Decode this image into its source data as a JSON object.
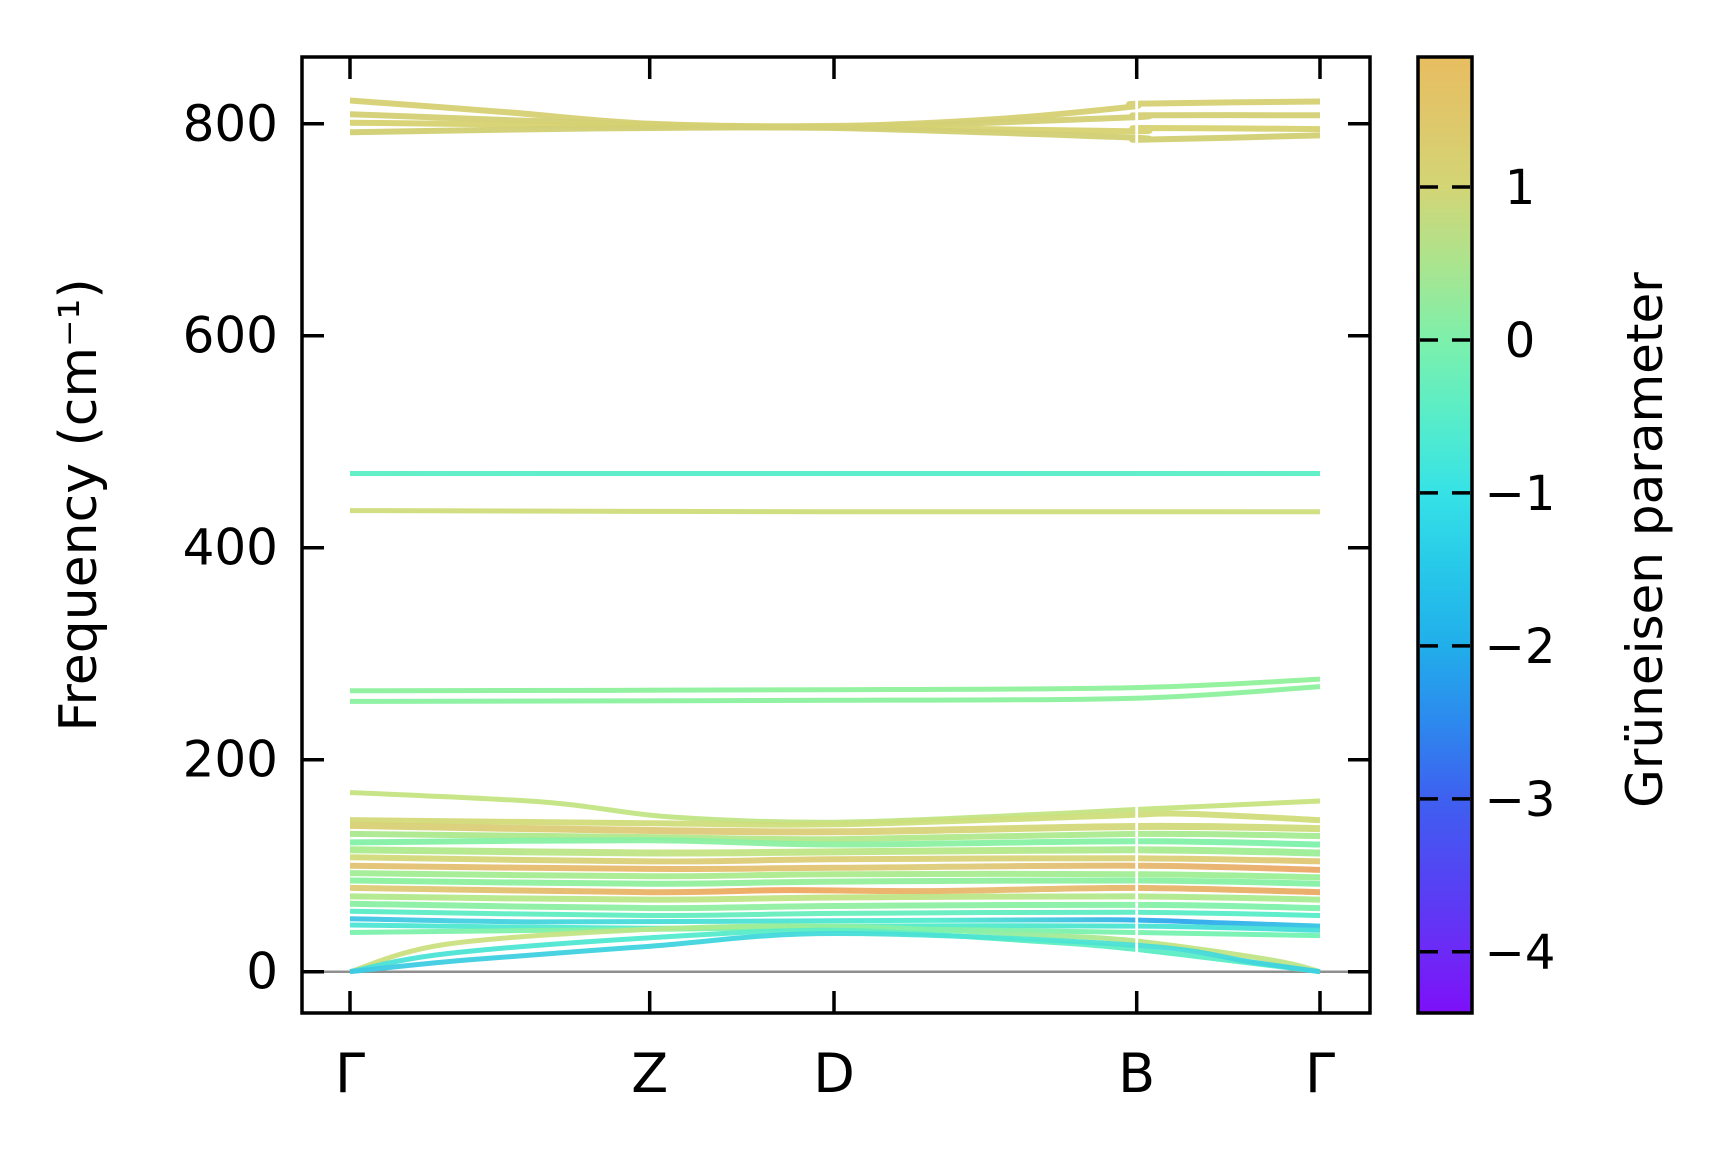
{
  "figure": {
    "background": "#ffffff",
    "frame_color": "#000000"
  },
  "chart_data": {
    "type": "line",
    "subtype": "phonon-band-structure-with-gruneisen-colormap",
    "title": "",
    "ylabel": "Frequency (cm⁻¹)",
    "ylim": [
      -39,
      863
    ],
    "y_ticks": [
      0,
      200,
      400,
      600,
      800
    ],
    "k_path_labels": [
      "Γ",
      "Z",
      "D",
      "B",
      "Γ"
    ],
    "k_path_fractions": [
      0,
      0.309,
      0.499,
      0.811,
      1.0
    ],
    "zero_line": {
      "value": 0,
      "color": "#8f8f8f"
    },
    "discontinuity_at": 0.811,
    "colorbar": {
      "label": "Grüneisen parameter",
      "vmax": 1.85,
      "vmin": -4.4,
      "ticks": [
        1,
        0,
        -1,
        -2,
        -3,
        -4
      ],
      "gradient": [
        {
          "v": 1.85,
          "c": "#e8bd61"
        },
        {
          "v": 1.4,
          "c": "#ddc96c"
        },
        {
          "v": 1.0,
          "c": "#d3d576"
        },
        {
          "v": 0.5,
          "c": "#abe48e"
        },
        {
          "v": 0.0,
          "c": "#7df0ab"
        },
        {
          "v": -0.5,
          "c": "#58edc9"
        },
        {
          "v": -1.0,
          "c": "#36e2e6"
        },
        {
          "v": -1.5,
          "c": "#27c8e9"
        },
        {
          "v": -2.0,
          "c": "#21aeea"
        },
        {
          "v": -2.5,
          "c": "#2d89ee"
        },
        {
          "v": -3.0,
          "c": "#3e60f0"
        },
        {
          "v": -3.5,
          "c": "#5345f3"
        },
        {
          "v": -4.0,
          "c": "#6c2af6"
        },
        {
          "v": -4.4,
          "c": "#7d10f8"
        }
      ]
    },
    "bands": [
      {
        "w": 6,
        "points": [
          [
            0,
            822
          ],
          [
            0.16,
            811
          ],
          [
            0.31,
            800
          ],
          [
            0.5,
            798
          ],
          [
            0.66,
            804
          ],
          [
            0.805,
            816
          ],
          [
            0.815,
            819
          ],
          [
            1,
            821
          ]
        ],
        "colors": [
          [
            0,
            "#d6d073"
          ]
        ]
      },
      {
        "w": 6,
        "points": [
          [
            0,
            809
          ],
          [
            0.31,
            799
          ],
          [
            0.5,
            797
          ],
          [
            0.805,
            806
          ],
          [
            0.815,
            808
          ],
          [
            1,
            808
          ]
        ],
        "colors": [
          [
            0,
            "#d4d075"
          ]
        ]
      },
      {
        "w": 6,
        "points": [
          [
            0,
            801
          ],
          [
            0.31,
            798
          ],
          [
            0.5,
            797
          ],
          [
            0.805,
            793
          ],
          [
            0.815,
            796
          ],
          [
            1,
            795
          ]
        ],
        "colors": [
          [
            0,
            "#d7d271"
          ]
        ]
      },
      {
        "w": 6,
        "points": [
          [
            0,
            792
          ],
          [
            0.2,
            795
          ],
          [
            0.31,
            796
          ],
          [
            0.5,
            796
          ],
          [
            0.805,
            787
          ],
          [
            0.815,
            785
          ],
          [
            1,
            789
          ]
        ],
        "colors": [
          [
            0,
            "#d2cf74"
          ]
        ]
      },
      {
        "w": 5,
        "points": [
          [
            0,
            470
          ],
          [
            0.5,
            470
          ],
          [
            1,
            470
          ]
        ],
        "colors": [
          [
            0,
            "#5beec5"
          ],
          [
            0.5,
            "#54edca"
          ],
          [
            1,
            "#5beec5"
          ]
        ]
      },
      {
        "w": 5,
        "points": [
          [
            0,
            435
          ],
          [
            0.5,
            434
          ],
          [
            1,
            434
          ]
        ],
        "colors": [
          [
            0,
            "#cfdc7b"
          ],
          [
            1,
            "#cdde7c"
          ]
        ]
      },
      {
        "w": 5,
        "points": [
          [
            0,
            265
          ],
          [
            0.5,
            266
          ],
          [
            0.81,
            268
          ],
          [
            1,
            276
          ]
        ],
        "colors": [
          [
            0,
            "#8cf19d"
          ],
          [
            1,
            "#90f19a"
          ]
        ]
      },
      {
        "w": 5,
        "points": [
          [
            0,
            255
          ],
          [
            0.5,
            256
          ],
          [
            0.81,
            258
          ],
          [
            1,
            269
          ]
        ],
        "colors": [
          [
            0,
            "#8af1a0"
          ],
          [
            1,
            "#8df19d"
          ]
        ]
      },
      {
        "w": 5,
        "points": [
          [
            0,
            169
          ],
          [
            0.2,
            160
          ],
          [
            0.33,
            146
          ],
          [
            0.5,
            141
          ],
          [
            0.7,
            148
          ],
          [
            0.81,
            153
          ],
          [
            1,
            161
          ]
        ],
        "colors": [
          [
            0,
            "#c6e381"
          ],
          [
            0.5,
            "#bfe586"
          ],
          [
            1,
            "#c8e37f"
          ]
        ]
      },
      {
        "w": 6,
        "points": [
          [
            0,
            143
          ],
          [
            0.31,
            140
          ],
          [
            0.5,
            139
          ],
          [
            0.78,
            147
          ],
          [
            0.86,
            149
          ],
          [
            1,
            143
          ]
        ],
        "colors": [
          [
            0,
            "#d4d978"
          ],
          [
            0.6,
            "#cde07e"
          ],
          [
            1,
            "#d1dc7a"
          ]
        ]
      },
      {
        "w": 7,
        "points": [
          [
            0,
            138
          ],
          [
            0.25,
            134
          ],
          [
            0.5,
            132
          ],
          [
            0.81,
            137
          ],
          [
            1,
            135
          ]
        ],
        "colors": [
          [
            0,
            "#d8d175"
          ],
          [
            0.35,
            "#dfc97a"
          ],
          [
            0.7,
            "#d5d77a"
          ],
          [
            1,
            "#cfdd7d"
          ]
        ]
      },
      {
        "w": 6,
        "points": [
          [
            0,
            130
          ],
          [
            0.31,
            127
          ],
          [
            0.5,
            125
          ],
          [
            0.81,
            130
          ],
          [
            1,
            128
          ]
        ],
        "colors": [
          [
            0,
            "#aae98e"
          ],
          [
            0.5,
            "#b5e88b"
          ],
          [
            1,
            "#a4ec93"
          ]
        ]
      },
      {
        "w": 6,
        "points": [
          [
            0,
            122
          ],
          [
            0.31,
            124
          ],
          [
            0.5,
            120
          ],
          [
            0.81,
            123
          ],
          [
            1,
            120
          ]
        ],
        "colors": [
          [
            0,
            "#83f0a6"
          ],
          [
            0.5,
            "#8ef0a0"
          ],
          [
            1,
            "#7df2ab"
          ]
        ]
      },
      {
        "w": 7,
        "points": [
          [
            0,
            115
          ],
          [
            0.31,
            112
          ],
          [
            0.5,
            113
          ],
          [
            0.81,
            115
          ],
          [
            1,
            112
          ]
        ],
        "colors": [
          [
            0,
            "#a9eb8f"
          ],
          [
            0.35,
            "#c6e383"
          ],
          [
            0.65,
            "#b6e88a"
          ],
          [
            1,
            "#9cee97"
          ]
        ]
      },
      {
        "w": 6,
        "points": [
          [
            0,
            108
          ],
          [
            0.31,
            104
          ],
          [
            0.5,
            106
          ],
          [
            0.81,
            107
          ],
          [
            1,
            104
          ]
        ],
        "colors": [
          [
            0,
            "#d1db7b"
          ],
          [
            0.4,
            "#ddcc77"
          ],
          [
            0.75,
            "#d7d57a"
          ],
          [
            1,
            "#e1c675"
          ]
        ]
      },
      {
        "w": 6,
        "points": [
          [
            0,
            100
          ],
          [
            0.31,
            97
          ],
          [
            0.5,
            98
          ],
          [
            0.81,
            100
          ],
          [
            1,
            96
          ]
        ],
        "colors": [
          [
            0,
            "#e2c374"
          ],
          [
            0.3,
            "#e8b96c"
          ],
          [
            0.6,
            "#ddcd79"
          ],
          [
            1,
            "#eca767"
          ]
        ]
      },
      {
        "w": 6,
        "points": [
          [
            0,
            93
          ],
          [
            0.31,
            90
          ],
          [
            0.5,
            92
          ],
          [
            0.81,
            92
          ],
          [
            1,
            89
          ]
        ],
        "colors": [
          [
            0,
            "#a1ed94"
          ],
          [
            0.5,
            "#adeb8d"
          ],
          [
            1,
            "#9aef98"
          ]
        ]
      },
      {
        "w": 6,
        "points": [
          [
            0,
            86
          ],
          [
            0.31,
            83
          ],
          [
            0.5,
            85
          ],
          [
            0.81,
            86
          ],
          [
            1,
            83
          ]
        ],
        "colors": [
          [
            0,
            "#8bf1a0"
          ],
          [
            0.5,
            "#97ef9b"
          ],
          [
            1,
            "#85f1a6"
          ]
        ]
      },
      {
        "w": 6,
        "points": [
          [
            0,
            79
          ],
          [
            0.31,
            75
          ],
          [
            0.45,
            77
          ],
          [
            0.6,
            76
          ],
          [
            0.81,
            79
          ],
          [
            1,
            75
          ]
        ],
        "colors": [
          [
            0,
            "#dccd78"
          ],
          [
            0.45,
            "#efa75e"
          ],
          [
            0.7,
            "#e5bd70"
          ],
          [
            1,
            "#eaaa63"
          ]
        ]
      },
      {
        "w": 6,
        "points": [
          [
            0,
            71
          ],
          [
            0.31,
            68
          ],
          [
            0.5,
            70
          ],
          [
            0.81,
            71
          ],
          [
            1,
            68
          ]
        ],
        "colors": [
          [
            0,
            "#b0ea8c"
          ],
          [
            0.5,
            "#c2e484"
          ],
          [
            1,
            "#a7ec92"
          ]
        ]
      },
      {
        "w": 6,
        "points": [
          [
            0,
            64
          ],
          [
            0.31,
            60
          ],
          [
            0.5,
            62
          ],
          [
            0.81,
            63
          ],
          [
            1,
            60
          ]
        ],
        "colors": [
          [
            0,
            "#89f0a3"
          ],
          [
            0.5,
            "#92efa0"
          ],
          [
            1,
            "#7ef2ac"
          ]
        ]
      },
      {
        "w": 5,
        "points": [
          [
            0,
            57
          ],
          [
            0.31,
            53
          ],
          [
            0.5,
            55
          ],
          [
            0.81,
            56
          ],
          [
            1,
            53
          ]
        ],
        "colors": [
          [
            0,
            "#59ecc6"
          ],
          [
            0.5,
            "#69eebc"
          ],
          [
            1,
            "#55edca"
          ]
        ]
      },
      {
        "w": 5,
        "points": [
          [
            0,
            50
          ],
          [
            0.2,
            47
          ],
          [
            0.5,
            48
          ],
          [
            0.78,
            49
          ],
          [
            0.9,
            46
          ],
          [
            1,
            43
          ]
        ],
        "colors": [
          [
            0,
            "#3fc4e5"
          ],
          [
            0.25,
            "#46d9db"
          ],
          [
            0.6,
            "#52eccd"
          ],
          [
            0.85,
            "#2da5ef"
          ],
          [
            1,
            "#36c5e3"
          ]
        ]
      },
      {
        "w": 5,
        "points": [
          [
            0,
            44
          ],
          [
            0.31,
            41
          ],
          [
            0.5,
            43
          ],
          [
            0.81,
            43
          ],
          [
            1,
            39
          ]
        ],
        "colors": [
          [
            0,
            "#4ce5d4"
          ],
          [
            0.5,
            "#58eec5"
          ],
          [
            1,
            "#42ddda"
          ]
        ]
      },
      {
        "w": 5,
        "points": [
          [
            0,
            37
          ],
          [
            0.31,
            40
          ],
          [
            0.5,
            41
          ],
          [
            0.81,
            37
          ],
          [
            1,
            34
          ]
        ],
        "colors": [
          [
            0,
            "#7cf2ac"
          ],
          [
            0.5,
            "#87f0a5"
          ],
          [
            1,
            "#71f3b4"
          ]
        ]
      },
      {
        "w": 5,
        "points": [
          [
            0,
            0
          ],
          [
            0.1,
            26
          ],
          [
            0.31,
            40
          ],
          [
            0.5,
            43
          ],
          [
            0.7,
            35
          ],
          [
            0.81,
            29
          ],
          [
            0.95,
            11
          ],
          [
            1,
            0
          ]
        ],
        "colors": [
          [
            0,
            "#cede7e"
          ],
          [
            0.2,
            "#c9e282"
          ],
          [
            0.4,
            "#a6ec93"
          ],
          [
            0.6,
            "#7df2ae"
          ],
          [
            0.85,
            "#c4e382"
          ],
          [
            1,
            "#bde58a"
          ]
        ]
      },
      {
        "w": 5,
        "points": [
          [
            0,
            0
          ],
          [
            0.1,
            17
          ],
          [
            0.31,
            32
          ],
          [
            0.5,
            39
          ],
          [
            0.7,
            29
          ],
          [
            0.81,
            21
          ],
          [
            1,
            0
          ]
        ],
        "colors": [
          [
            0,
            "#49e0d8"
          ],
          [
            0.3,
            "#51ead0"
          ],
          [
            0.6,
            "#65efbe"
          ],
          [
            1,
            "#55ecc9"
          ]
        ]
      },
      {
        "w": 5,
        "points": [
          [
            0,
            0
          ],
          [
            0.12,
            11
          ],
          [
            0.31,
            24
          ],
          [
            0.5,
            36
          ],
          [
            0.81,
            25
          ],
          [
            0.93,
            9
          ],
          [
            1,
            0
          ]
        ],
        "colors": [
          [
            0,
            "#3ecae3"
          ],
          [
            0.4,
            "#40d6de"
          ],
          [
            0.7,
            "#4ee8d0"
          ],
          [
            1,
            "#3ed0e0"
          ]
        ]
      }
    ]
  }
}
